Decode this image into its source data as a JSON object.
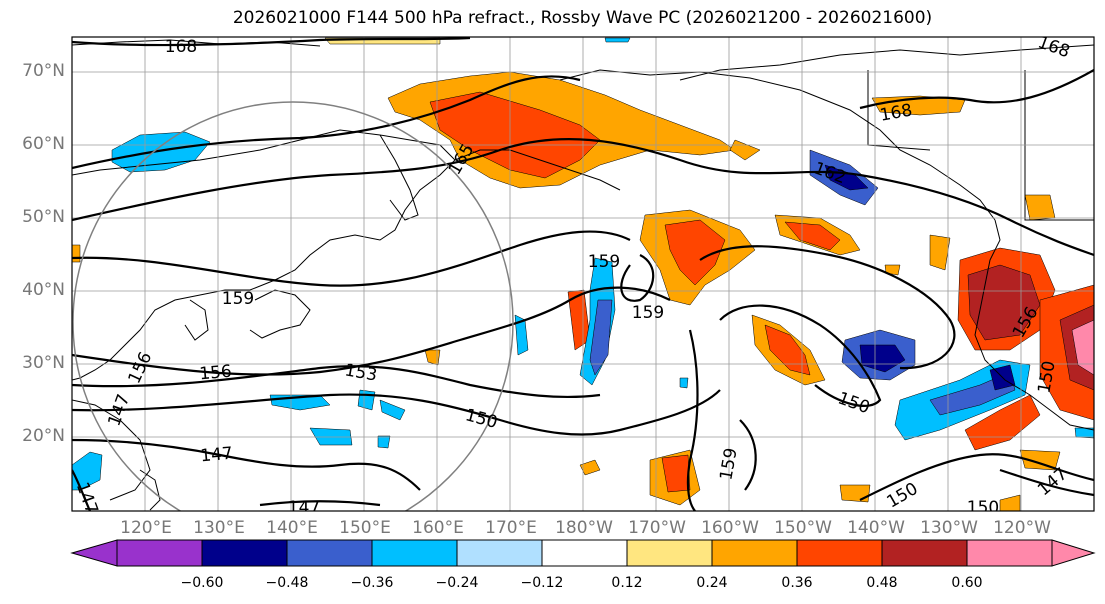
{
  "title": "2026021000 F144 500 hPa refract., Rossby Wave PC (2026021200 - 2026021600)",
  "lat_labels": [
    "70°N",
    "60°N",
    "50°N",
    "40°N",
    "30°N",
    "20°N"
  ],
  "lon_labels": [
    "120°E",
    "130°E",
    "140°E",
    "150°E",
    "160°E",
    "170°E",
    "180°W",
    "170°W",
    "160°W",
    "150°W",
    "140°W",
    "130°W",
    "120°W"
  ],
  "contour_labels": [
    "168",
    "168",
    "168",
    "165",
    "162",
    "159",
    "159",
    "159",
    "159",
    "156",
    "156",
    "156",
    "153",
    "150",
    "150",
    "150",
    "150",
    "150",
    "147",
    "147",
    "147",
    "147",
    "147"
  ],
  "colorbar": {
    "ticks": [
      "−0.60",
      "−0.48",
      "−0.36",
      "−0.24",
      "−0.12",
      "0.12",
      "0.24",
      "0.36",
      "0.48",
      "0.60"
    ],
    "colors": [
      "#9932cc",
      "#00008b",
      "#3a5fcd",
      "#00bfff",
      "#b0e0ff",
      "#ffffff",
      "#ffe680",
      "#ffa500",
      "#ff4500",
      "#b22222",
      "#ff88aa"
    ]
  },
  "colors": {
    "neg_strong": "#00008b",
    "neg_mid": "#3a5fcd",
    "neg_light": "#00bfff",
    "pos_light": "#ffe680",
    "pos_orange": "#ffa500",
    "pos_red": "#ff4500",
    "pos_dark": "#b22222",
    "pos_pink": "#ff88aa"
  }
}
